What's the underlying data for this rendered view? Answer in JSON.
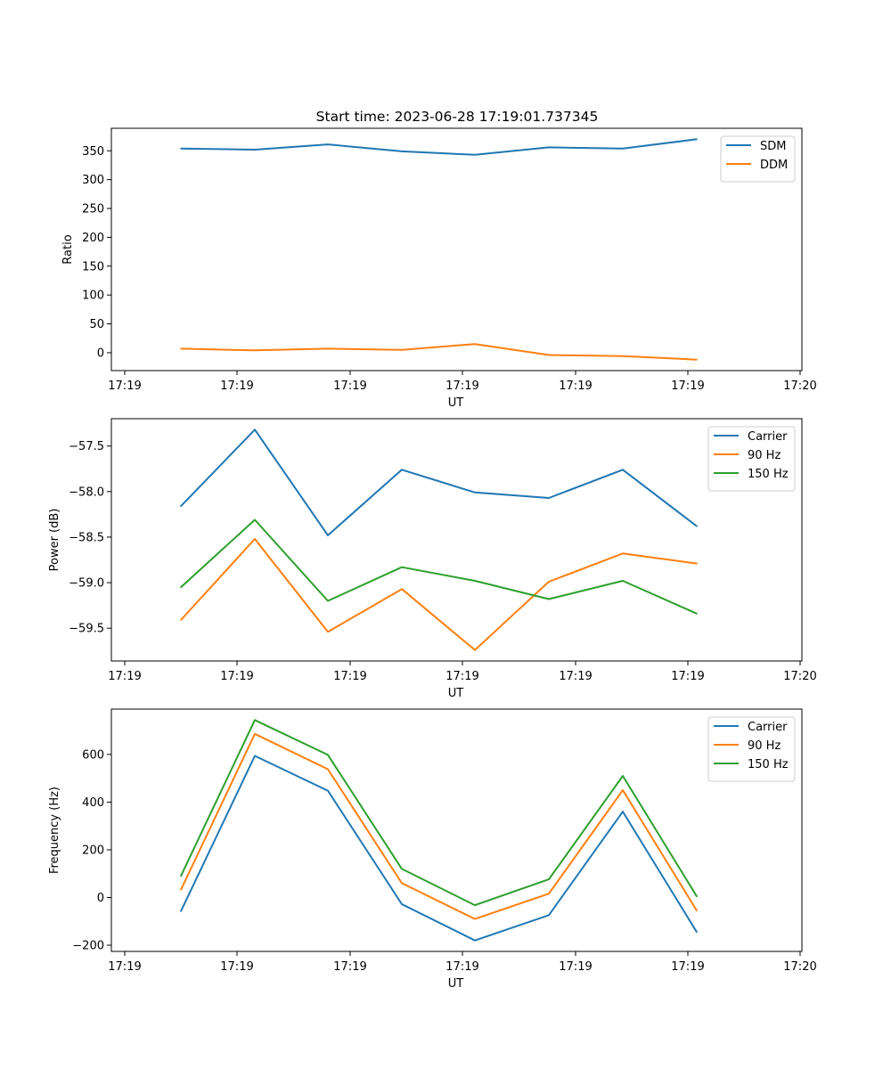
{
  "title": "Start time: 2023-06-28 17:19:01.737345",
  "colors": {
    "c1": "#1f77b4",
    "c2": "#ff7f0e",
    "c3": "#2ca02c"
  },
  "chart_data": [
    {
      "type": "line",
      "xlabel": "UT",
      "ylabel": "Ratio",
      "x_tick_labels": [
        "17:19",
        "17:19",
        "17:19",
        "17:19",
        "17:19",
        "17:19",
        "17:20"
      ],
      "y_ticks": [
        "0",
        "50",
        "100",
        "150",
        "200",
        "250",
        "300",
        "350"
      ],
      "ylim": [
        -31,
        389
      ],
      "legend_position": "upper right",
      "series": [
        {
          "name": "SDM",
          "color": "#1f77b4",
          "values": [
            354,
            352,
            361,
            349,
            343,
            356,
            354,
            370
          ]
        },
        {
          "name": "DDM",
          "color": "#ff7f0e",
          "values": [
            7,
            4,
            7,
            5,
            15,
            -4,
            -6,
            -12
          ]
        }
      ]
    },
    {
      "type": "line",
      "xlabel": "UT",
      "ylabel": "Power (dB)",
      "x_tick_labels": [
        "17:19",
        "17:19",
        "17:19",
        "17:19",
        "17:19",
        "17:19",
        "17:20"
      ],
      "y_ticks": [
        "−59.5",
        "−59.0",
        "−58.5",
        "−58.0",
        "−57.5"
      ],
      "ylim": [
        -59.86,
        -57.2
      ],
      "legend_position": "upper right",
      "series": [
        {
          "name": "Carrier",
          "color": "#1f77b4",
          "values": [
            -58.16,
            -57.32,
            -58.48,
            -57.76,
            -58.01,
            -58.07,
            -57.76,
            -58.38
          ]
        },
        {
          "name": "90 Hz",
          "color": "#ff7f0e",
          "values": [
            -59.41,
            -58.52,
            -59.54,
            -59.07,
            -59.74,
            -58.99,
            -58.68,
            -58.79
          ]
        },
        {
          "name": "150 Hz",
          "color": "#2ca02c",
          "values": [
            -59.05,
            -58.31,
            -59.2,
            -58.83,
            -58.98,
            -59.18,
            -58.98,
            -59.34
          ]
        }
      ]
    },
    {
      "type": "line",
      "xlabel": "UT",
      "ylabel": "Frequency (Hz)",
      "x_tick_labels": [
        "17:19",
        "17:19",
        "17:19",
        "17:19",
        "17:19",
        "17:19",
        "17:20"
      ],
      "y_ticks": [
        "−200",
        "0",
        "200",
        "400",
        "600"
      ],
      "ylim": [
        -226,
        790
      ],
      "legend_position": "upper right",
      "series": [
        {
          "name": "Carrier",
          "color": "#1f77b4",
          "values": [
            -58,
            594,
            448,
            -28,
            -180,
            -74,
            360,
            -145
          ]
        },
        {
          "name": "90 Hz",
          "color": "#ff7f0e",
          "values": [
            32,
            686,
            538,
            60,
            -90,
            16,
            450,
            -55
          ]
        },
        {
          "name": "150 Hz",
          "color": "#2ca02c",
          "values": [
            90,
            744,
            598,
            120,
            -32,
            76,
            510,
            5
          ]
        }
      ]
    }
  ]
}
